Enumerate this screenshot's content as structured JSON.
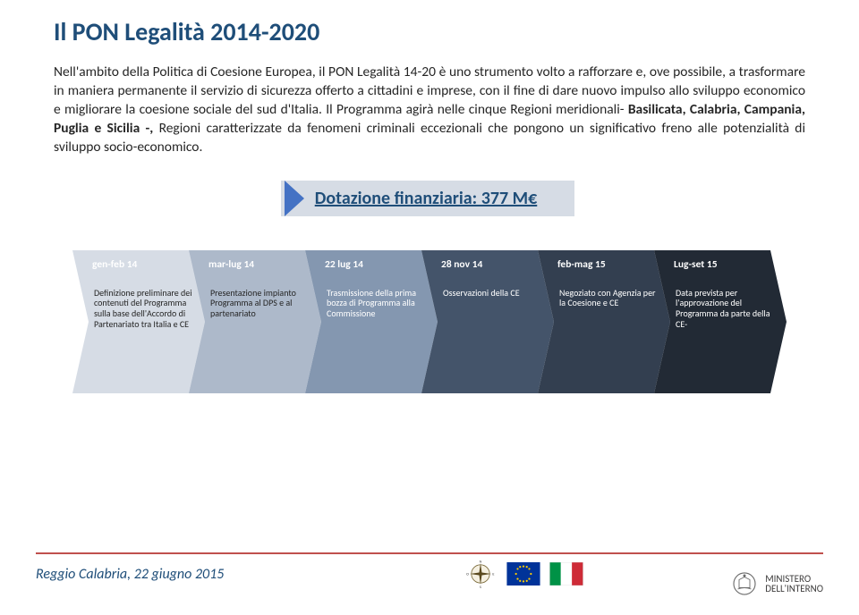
{
  "title": "Il PON Legalità 2014-2020",
  "body": {
    "pre": "Nell'ambito della Politica di Coesione Europea, il PON Legalità 14-20 è uno strumento volto a rafforzare e, ove possibile, a trasformare in maniera permanente il servizio di sicurezza offerto a cittadini e imprese, con il fine di dare nuovo impulso allo sviluppo economico e migliorare la coesione sociale del sud d'Italia. Il Programma agirà nelle cinque Regioni meridionali- ",
    "bold": "Basilicata, Calabria, Campania, Puglia e Sicilia -,",
    "post": " Regioni caratterizzate da fenomeni criminali eccezionali che pongono un significativo freno alle potenzialità di sviluppo socio-economico."
  },
  "funding_label": "Dotazione finanziaria: 377 M€",
  "timeline": {
    "seg_width": 148,
    "seg_height": 160,
    "notch": 18,
    "items": [
      {
        "label": "gen-feb 14",
        "desc": "Definizione preliminare dei contenuti del Programma sulla base dell'Accordo di Partenariato tra Italia e CE",
        "fill": "#d6dce5",
        "text_theme": "dark"
      },
      {
        "label": "mar-lug 14",
        "desc": "Presentazione impianto Programma al DPS e al partenariato",
        "fill": "#adb9ca",
        "text_theme": "dark"
      },
      {
        "label": "22 lug 14",
        "desc": "Trasmissione della prima bozza di Programma alla Commissione",
        "fill": "#8497b0",
        "text_theme": "light"
      },
      {
        "label": "28 nov 14",
        "desc": "Osservazioni della CE",
        "fill": "#44546a",
        "text_theme": "light"
      },
      {
        "label": "feb-mag 15",
        "desc": "Negoziato con Agenzia per la Coesione e CE",
        "fill": "#333f50",
        "text_theme": "light"
      },
      {
        "label": "Lug-set 15",
        "desc": "Data prevista per l'approvazione del Programma da parte della CE-",
        "fill": "#222a35",
        "text_theme": "light"
      }
    ]
  },
  "footer": {
    "place_date": "Reggio Calabria, 22 giugno 2015",
    "ministero_line1": "MINISTERO",
    "ministero_line2": "DELL'INTERNO"
  },
  "colors": {
    "title": "#1f4e79",
    "rule": "#c0504d",
    "funding_bar": "#d6dce5",
    "funding_chevron": "#4472c4"
  }
}
